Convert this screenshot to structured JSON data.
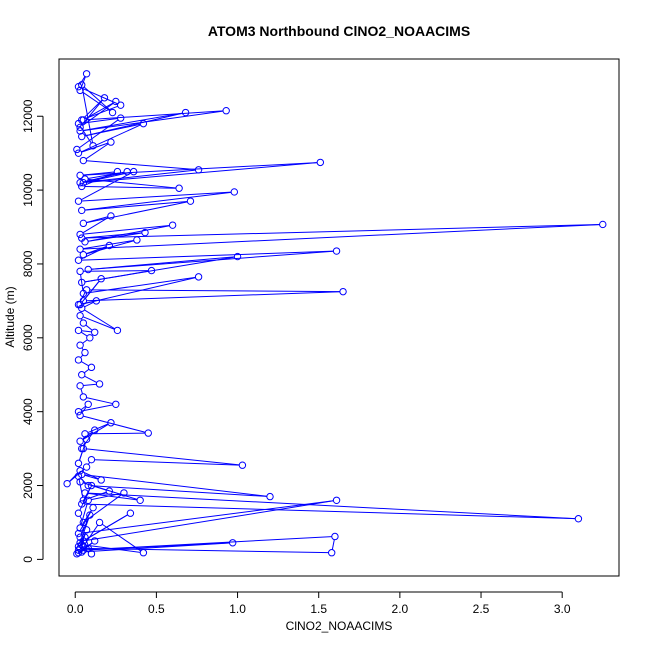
{
  "chart_data": {
    "type": "line",
    "title": "ATOM3 Northbound ClNO2_NOAACIMS",
    "xlabel": "ClNO2_NOAACIMS",
    "ylabel": "Altitude (m)",
    "xlim": [
      -0.1,
      3.35
    ],
    "ylim": [
      -450,
      13550
    ],
    "xticks": [
      0,
      0.5,
      1,
      1.5,
      2,
      2.5,
      3
    ],
    "xtick_labels": [
      "0.0",
      "0.5",
      "1.0",
      "1.5",
      "2.0",
      "2.5",
      "3.0"
    ],
    "yticks": [
      0,
      2000,
      4000,
      6000,
      8000,
      10000,
      12000
    ],
    "ytick_labels": [
      "0",
      "2000",
      "4000",
      "6000",
      "8000",
      "10000",
      "12000"
    ],
    "grid": false,
    "series_color": "#0000ff",
    "markers": "open-circle",
    "series": [
      {
        "x": [
          0.01,
          0.08,
          0.02,
          0.12,
          0.05,
          0.97,
          0.04,
          0.02,
          0.1,
          0.06,
          0.03,
          1.58,
          1.6,
          0.02,
          0.07,
          0.04,
          0.42,
          0.15,
          0.05,
          0.03,
          0.09,
          0.03,
          0.34,
          0.05,
          1.61,
          0.02,
          0.11,
          0.03,
          0.08,
          0.3,
          0.05,
          0.02,
          0.1,
          0.04,
          3.1,
          0.06,
          0.4,
          0.03,
          0.21,
          0.05,
          0.02,
          0.08,
          1.2,
          0.04,
          0.16,
          0.03,
          -0.05,
          0.07,
          0.1,
          1.03,
          0.05,
          0.02,
          0.07,
          0.04,
          0.12,
          0.03,
          0.22,
          0.06,
          0.45,
          0.03,
          0.08,
          0.02,
          0.25,
          0.05,
          0.03,
          0.15,
          0.04,
          0.1,
          0.02,
          0.06,
          0.03,
          0.09,
          0.02,
          0.12,
          0.05,
          0.03,
          0.26,
          0.04,
          0.13,
          0.02,
          0.07,
          1.65,
          0.05,
          0.16,
          0.03,
          0.76,
          0.05,
          0.03,
          0.47,
          0.04,
          1.0,
          0.08,
          1.61,
          0.02,
          0.21,
          0.05,
          0.38,
          0.03,
          3.25,
          0.04,
          0.43,
          0.06,
          0.6,
          0.03,
          0.22,
          0.05,
          0.71,
          0.04,
          0.98,
          0.02,
          0.36,
          0.05,
          1.51,
          0.03,
          0.26,
          0.04,
          0.64,
          0.06,
          0.32,
          0.03,
          0.76,
          0.05,
          0.22,
          0.02,
          0.42,
          0.04,
          0.68,
          0.03,
          0.93,
          0.05,
          0.25,
          0.03,
          0.18,
          0.04,
          0.28,
          0.02,
          0.07,
          0.03,
          0.23,
          0.04,
          0.11,
          0.02,
          0.28,
          0.01
        ],
        "y": [
          150,
          300,
          180,
          500,
          250,
          450,
          200,
          350,
          150,
          600,
          300,
          180,
          620,
          250,
          800,
          400,
          180,
          1000,
          350,
          600,
          1200,
          450,
          1250,
          500,
          1600,
          700,
          1400,
          850,
          1600,
          1800,
          1000,
          1250,
          2000,
          1500,
          1100,
          1800,
          1600,
          2100,
          1850,
          1600,
          2250,
          2000,
          1700,
          2300,
          2150,
          2400,
          2050,
          2500,
          2700,
          2550,
          3000,
          2600,
          3250,
          3000,
          3500,
          3200,
          3700,
          3400,
          3420,
          3900,
          4200,
          4000,
          4200,
          4400,
          4700,
          4750,
          5000,
          5200,
          5400,
          5600,
          5800,
          6000,
          6200,
          6150,
          6400,
          6600,
          6200,
          6800,
          7000,
          6900,
          7300,
          7250,
          7000,
          7600,
          6900,
          7650,
          7200,
          7800,
          7820,
          7500,
          8200,
          7850,
          8350,
          8100,
          8500,
          8250,
          8650,
          8400,
          9070,
          8700,
          8850,
          8600,
          9050,
          8800,
          9300,
          9100,
          9700,
          9450,
          9950,
          9700,
          10500,
          10200,
          10750,
          10400,
          10500,
          10100,
          10050,
          10300,
          10500,
          10200,
          10550,
          10800,
          11300,
          11000,
          11800,
          11450,
          12100,
          11600,
          12150,
          11900,
          12400,
          11700,
          12500,
          11900,
          12300,
          12800,
          13150,
          12700,
          12100,
          12850,
          11200,
          11800,
          11950,
          11100
        ]
      }
    ]
  }
}
